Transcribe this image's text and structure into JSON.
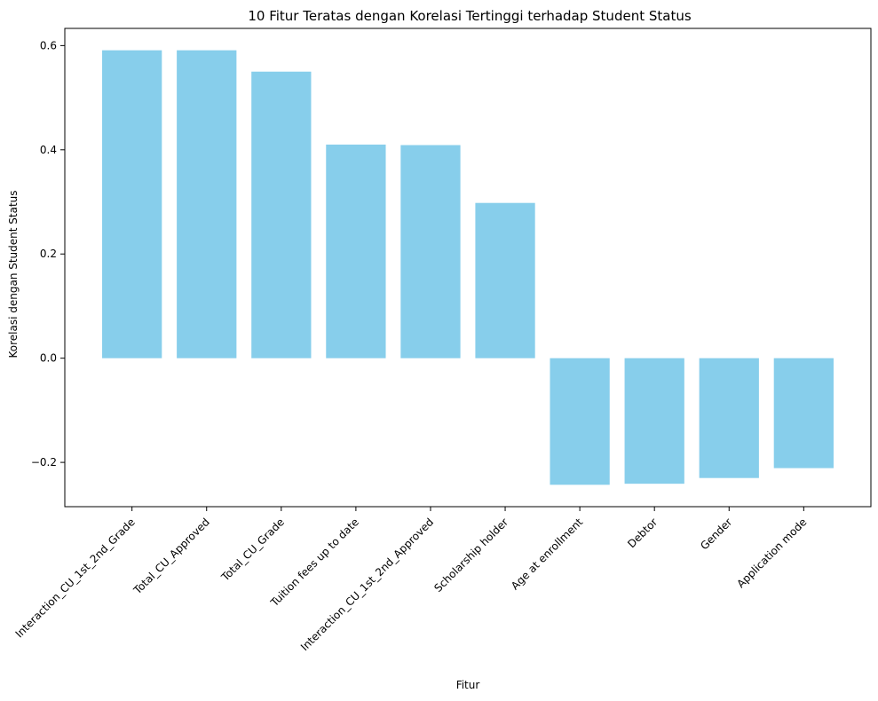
{
  "chart_data": {
    "type": "bar",
    "title": "10 Fitur Teratas dengan Korelasi Tertinggi terhadap Student Status",
    "xlabel": "Fitur",
    "ylabel": "Korelasi dengan Student Status",
    "categories": [
      "Interaction_CU_1st_2nd_Grade",
      "Total_CU_Approved",
      "Total_CU_Grade",
      "Tuition fees up to date",
      "Interaction_CU_1st_2nd_Approved",
      "Scholarship holder",
      "Age at enrollment",
      "Debtor",
      "Gender",
      "Application mode"
    ],
    "values": [
      0.591,
      0.591,
      0.55,
      0.41,
      0.409,
      0.298,
      -0.243,
      -0.241,
      -0.23,
      -0.211
    ],
    "ylim": [
      -0.285,
      0.633
    ],
    "yticks": [
      -0.2,
      0.0,
      0.2,
      0.4,
      0.6
    ],
    "ytick_labels": [
      "−0.2",
      "0.0",
      "0.2",
      "0.4",
      "0.6"
    ],
    "bar_color": "#87ceeb",
    "grid": false,
    "legend": "none"
  }
}
